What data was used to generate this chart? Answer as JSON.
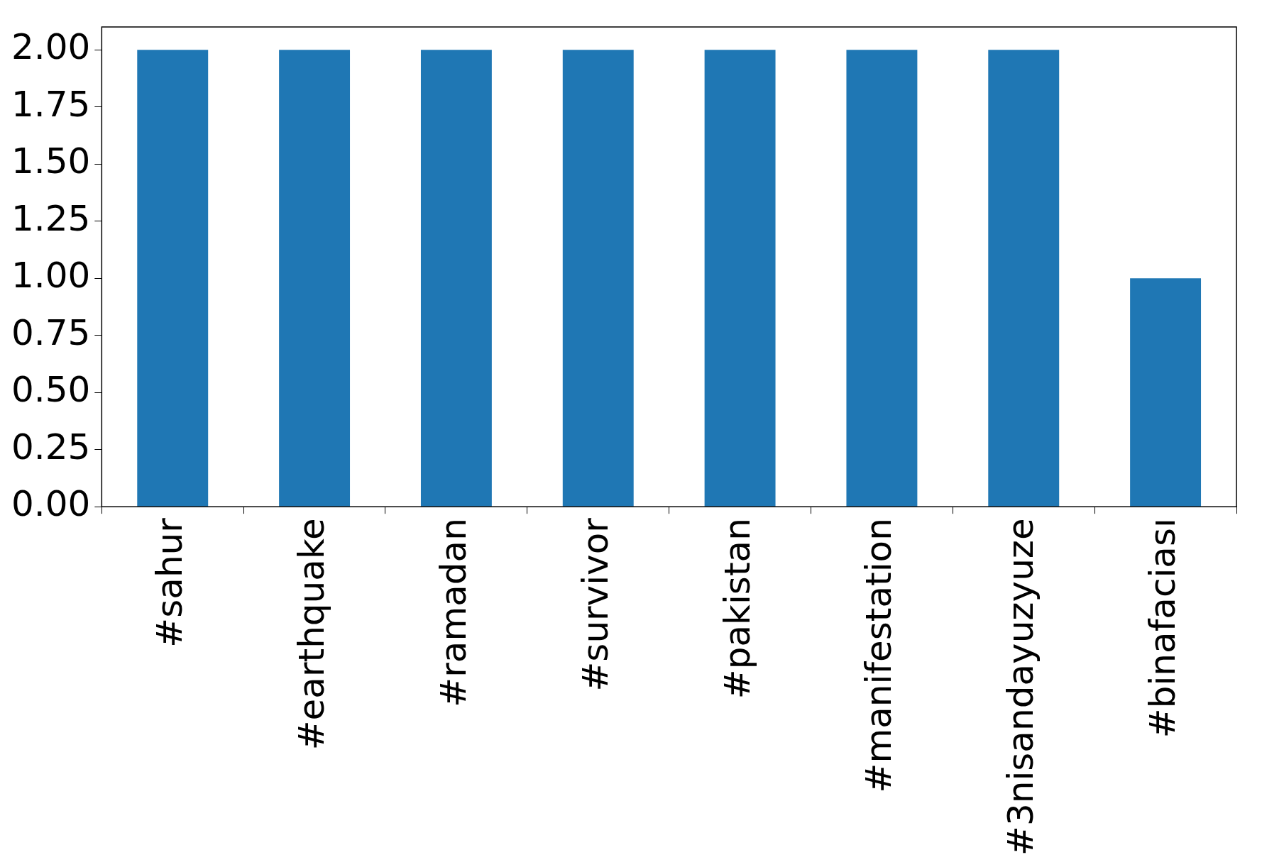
{
  "chart_data": {
    "type": "bar",
    "categories": [
      "#sahur",
      "#earthquake",
      "#ramadan",
      "#survivor",
      "#pakistan",
      "#manifestation",
      "#3nisandayuzyuze",
      "#binafaciası"
    ],
    "values": [
      2,
      2,
      2,
      2,
      2,
      2,
      2,
      1
    ],
    "color": "#1f77b4",
    "ylim": [
      0,
      2.1
    ],
    "yticks": [
      {
        "value": 0,
        "label": "0.00"
      },
      {
        "value": 0.25,
        "label": "0.25"
      },
      {
        "value": 0.5,
        "label": "0.50"
      },
      {
        "value": 0.75,
        "label": "0.75"
      },
      {
        "value": 1,
        "label": "1.00"
      },
      {
        "value": 1.25,
        "label": "1.25"
      },
      {
        "value": 1.5,
        "label": "1.50"
      },
      {
        "value": 1.75,
        "label": "1.75"
      },
      {
        "value": 2,
        "label": "2.00"
      }
    ],
    "grid": false,
    "legend": false
  }
}
